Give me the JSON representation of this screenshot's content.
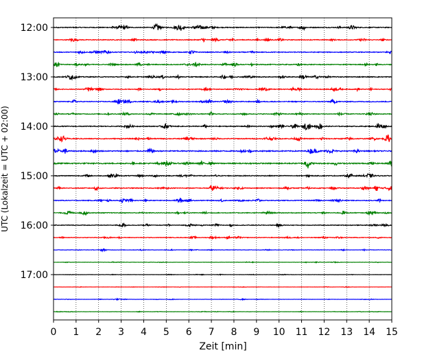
{
  "chart_data": {
    "type": "line",
    "title": "",
    "xlabel": "Zeit  [min]",
    "ylabel": "UTC (Lokalzeit = UTC + 02:00)",
    "xlim": [
      0,
      15
    ],
    "x_ticks": [
      0,
      1,
      2,
      3,
      4,
      5,
      6,
      7,
      8,
      9,
      10,
      11,
      12,
      13,
      14,
      15
    ],
    "x_tick_labels": [
      "0",
      "1",
      "2",
      "3",
      "4",
      "5",
      "6",
      "7",
      "8",
      "9",
      "10",
      "11",
      "12",
      "13",
      "14",
      "15"
    ],
    "y_tick_labels": [
      "12:00",
      "13:00",
      "14:00",
      "15:00",
      "16:00",
      "17:00"
    ],
    "y_tick_rows": [
      0,
      4,
      8,
      12,
      16,
      20
    ],
    "vertical_grid": "dotted",
    "color_cycle": [
      "#000000",
      "#ff0000",
      "#0000ff",
      "#008000"
    ],
    "traces": [
      {
        "start": "12:00",
        "amplitude": 0.55
      },
      {
        "start": "12:15",
        "amplitude": 0.5
      },
      {
        "start": "12:30",
        "amplitude": 0.5
      },
      {
        "start": "12:45",
        "amplitude": 0.55
      },
      {
        "start": "13:00",
        "amplitude": 0.55
      },
      {
        "start": "13:15",
        "amplitude": 0.5
      },
      {
        "start": "13:30",
        "amplitude": 0.55
      },
      {
        "start": "13:45",
        "amplitude": 0.5
      },
      {
        "start": "14:00",
        "amplitude": 0.55
      },
      {
        "start": "14:15",
        "amplitude": 0.6
      },
      {
        "start": "14:30",
        "amplitude": 0.7
      },
      {
        "start": "14:45",
        "amplitude": 0.75
      },
      {
        "start": "15:00",
        "amplitude": 0.55
      },
      {
        "start": "15:15",
        "amplitude": 0.55
      },
      {
        "start": "15:30",
        "amplitude": 0.5
      },
      {
        "start": "15:45",
        "amplitude": 0.5
      },
      {
        "start": "16:00",
        "amplitude": 0.45
      },
      {
        "start": "16:15",
        "amplitude": 0.4
      },
      {
        "start": "16:30",
        "amplitude": 0.25
      },
      {
        "start": "16:45",
        "amplitude": 0.15
      },
      {
        "start": "17:00",
        "amplitude": 0.12
      },
      {
        "start": "17:15",
        "amplitude": 0.1
      },
      {
        "start": "17:30",
        "amplitude": 0.12
      },
      {
        "start": "17:45",
        "amplitude": 0.12
      }
    ]
  }
}
